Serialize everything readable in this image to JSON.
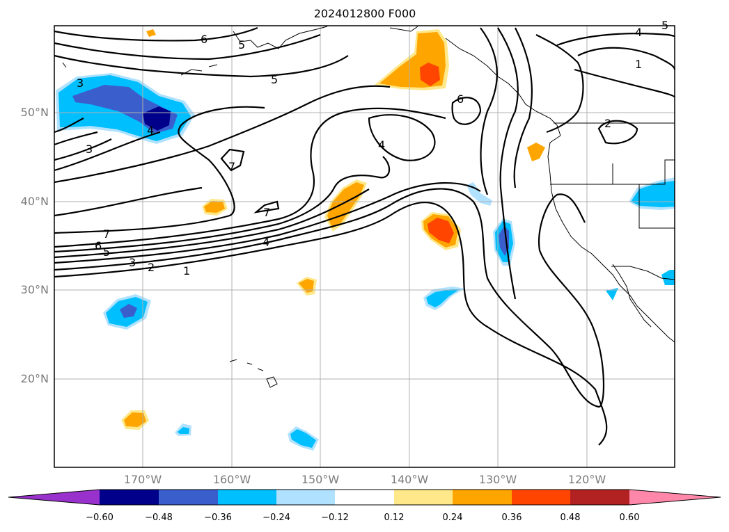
{
  "title": "2024012800 F000",
  "lat_labels": [
    "50°N",
    "40°N",
    "30°N",
    "20°N"
  ],
  "lon_labels": [
    "170°W",
    "160°W",
    "150°W",
    "140°W",
    "130°W",
    "120°W"
  ],
  "contour_labels": [
    "6",
    "5",
    "3",
    "4",
    "3",
    "7",
    "7",
    "7",
    "6",
    "5",
    "3",
    "2",
    "1",
    "4",
    "5",
    "4",
    "6",
    "4",
    "1",
    "2",
    "5"
  ],
  "colorbar": {
    "ticks": [
      "−0.60",
      "−0.48",
      "−0.36",
      "−0.24",
      "−0.12",
      "0.12",
      "0.24",
      "0.36",
      "0.48",
      "0.60"
    ],
    "colors": [
      "#9932cc",
      "#00008b",
      "#3a5fcd",
      "#00bfff",
      "#b0e2ff",
      "#ffffff",
      "#ffe88a",
      "#ffa500",
      "#ff4500",
      "#b22222",
      "#ff88aa"
    ]
  }
}
